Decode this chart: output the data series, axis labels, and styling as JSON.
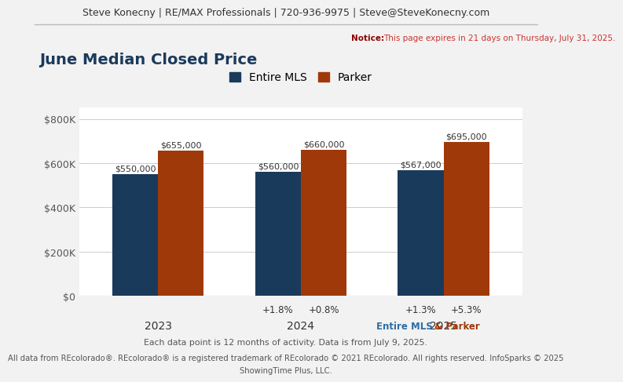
{
  "title": "June Median Closed Price",
  "header": "Steve Konecny | RE/MAX Professionals | 720-936-9975 | Steve@SteveKonecny.com",
  "notice_bold": "Notice:",
  "notice_rest": "This page expires in 21 days on Thursday, July 31, 2025.",
  "footer1": "Each data point is 12 months of activity. Data is from July 9, 2025.",
  "footer2": "All data from REcolorado®. REcolorado® is a registered trademark of REcolorado © 2021 REcolorado. All rights reserved. InfoSparks © 2025",
  "footer3": "ShowingTime Plus, LLC.",
  "legend_label1": "Entire MLS",
  "legend_label2": "Parker",
  "years": [
    "2023",
    "2024",
    "2025"
  ],
  "mls_values": [
    550000,
    560000,
    567000
  ],
  "parker_values": [
    655000,
    660000,
    695000
  ],
  "mls_color": "#1a3a5c",
  "parker_color": "#a0390a",
  "mls_pct": [
    "",
    "+1.8%",
    "+1.3%"
  ],
  "parker_pct": [
    "",
    "+0.8%",
    "+5.3%"
  ],
  "ylim": [
    0,
    850000
  ],
  "yticks": [
    0,
    200000,
    400000,
    600000,
    800000
  ],
  "ytick_labels": [
    "$0",
    "$200K",
    "$400K",
    "$600K",
    "$800K"
  ],
  "bar_width": 0.32,
  "background_color": "#f2f2f2",
  "plot_bg_color": "#ffffff",
  "title_color": "#1a3a5c",
  "notice_color": "#8b0000",
  "mls_footer_color": "#2e6da4",
  "parker_footer_color": "#a0390a",
  "grid_color": "#cccccc",
  "text_color": "#555555",
  "label_color": "#333333"
}
